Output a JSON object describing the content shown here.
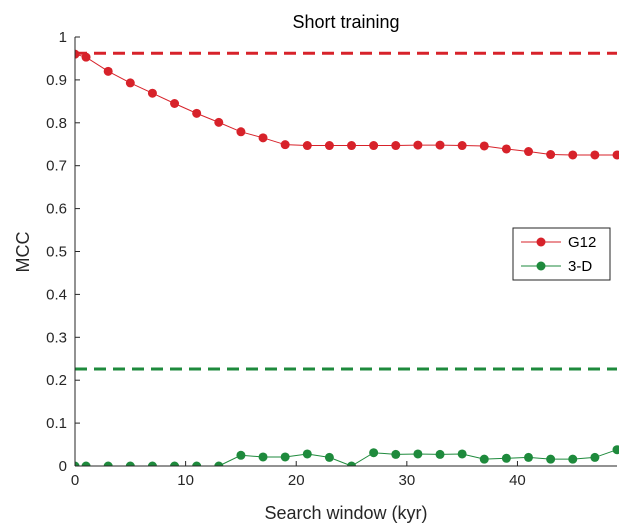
{
  "chart_data": {
    "type": "line",
    "title": "Short training",
    "xlabel": "Search window (kyr)",
    "ylabel": "MCC",
    "xlim": [
      0,
      49
    ],
    "ylim": [
      0,
      1
    ],
    "xticks": [
      "0",
      "10",
      "20",
      "30",
      "40"
    ],
    "yticks": [
      "0",
      "0.1",
      "0.2",
      "0.3",
      "0.4",
      "0.5",
      "0.6",
      "0.7",
      "0.8",
      "0.9",
      "1"
    ],
    "grid": false,
    "legend_position": "right",
    "x": [
      0,
      1,
      3,
      5,
      7,
      9,
      11,
      13,
      15,
      17,
      19,
      21,
      23,
      25,
      27,
      29,
      31,
      33,
      35,
      37,
      39,
      41,
      43,
      45,
      47,
      49
    ],
    "series": [
      {
        "name": "G12",
        "color": "#d7222a",
        "marker": "circle",
        "values": [
          0.96,
          0.953,
          0.92,
          0.893,
          0.869,
          0.845,
          0.822,
          0.801,
          0.779,
          0.765,
          0.749,
          0.747,
          0.747,
          0.747,
          0.747,
          0.747,
          0.748,
          0.748,
          0.747,
          0.746,
          0.739,
          0.733,
          0.726,
          0.725,
          0.725,
          0.725
        ]
      },
      {
        "name": "3-D",
        "color": "#1e8a3c",
        "marker": "circle",
        "values": [
          0,
          0,
          0,
          0,
          0,
          0,
          0,
          0,
          0.025,
          0.021,
          0.021,
          0.028,
          0.02,
          0,
          0.031,
          0.027,
          0.028,
          0.027,
          0.028,
          0.016,
          0.018,
          0.02,
          0.016,
          0.016,
          0.02,
          0.038
        ]
      }
    ],
    "reference_lines": [
      {
        "series": "G12",
        "y": 0.962,
        "style": "dashed",
        "color": "#d7222a"
      },
      {
        "series": "3-D",
        "y": 0.226,
        "style": "dashed",
        "color": "#1e8a3c"
      }
    ]
  }
}
